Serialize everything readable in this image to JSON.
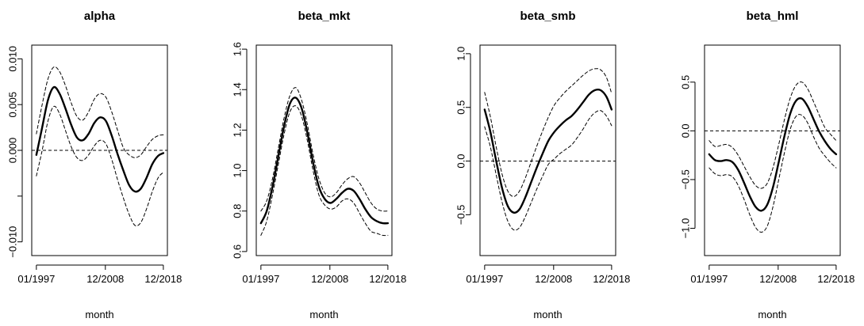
{
  "chart_data": [
    {
      "type": "line",
      "title": "alpha",
      "xlabel": "month",
      "ylabel": "",
      "x_tick_labels": [
        "01/1997",
        "12/2008",
        "12/2018"
      ],
      "x_tick_positions": [
        1997.0,
        2008.9,
        2018.9
      ],
      "xlim": [
        1996.2,
        2019.6
      ],
      "ylim": [
        -0.0115,
        0.0115
      ],
      "y_ticks": [
        -0.01,
        -0.005,
        0.0,
        0.005,
        0.01
      ],
      "y_tick_labels": [
        "−0.010",
        "",
        "0.000",
        "0.005",
        "0.010"
      ],
      "reference_line": 0,
      "grid": false,
      "x": [
        1997,
        1998,
        1999,
        2000,
        2001,
        2002,
        2003,
        2004,
        2005,
        2006,
        2007,
        2008,
        2009,
        2010,
        2011,
        2012,
        2013,
        2014,
        2015,
        2016,
        2017,
        2018,
        2018.9
      ],
      "series": [
        {
          "role": "estimate",
          "style": "solid",
          "values": [
            -0.0005,
            0.0025,
            0.0055,
            0.0069,
            0.0062,
            0.0046,
            0.0028,
            0.0014,
            0.0011,
            0.0018,
            0.003,
            0.0036,
            0.0032,
            0.0016,
            -0.0004,
            -0.0022,
            -0.0038,
            -0.0045,
            -0.0042,
            -0.003,
            -0.0015,
            -0.0006,
            -0.0003
          ]
        },
        {
          "role": "upper",
          "style": "dashed",
          "values": [
            0.0018,
            0.005,
            0.0078,
            0.0091,
            0.0086,
            0.0071,
            0.0052,
            0.0037,
            0.0033,
            0.0042,
            0.0056,
            0.0062,
            0.0058,
            0.0042,
            0.0022,
            0.0003,
            -0.0005,
            -0.0008,
            -0.0005,
            0.0004,
            0.0012,
            0.0016,
            0.0017
          ]
        },
        {
          "role": "lower",
          "style": "dashed",
          "values": [
            -0.0028,
            0.0,
            0.0032,
            0.0048,
            0.004,
            0.0022,
            0.0004,
            -0.0008,
            -0.0011,
            -0.0005,
            0.0005,
            0.0011,
            0.0007,
            -0.001,
            -0.0032,
            -0.0052,
            -0.007,
            -0.0082,
            -0.0079,
            -0.0064,
            -0.0045,
            -0.003,
            -0.0024
          ]
        }
      ]
    },
    {
      "type": "line",
      "title": "beta_mkt",
      "xlabel": "month",
      "ylabel": "",
      "x_tick_labels": [
        "01/1997",
        "12/2008",
        "12/2018"
      ],
      "x_tick_positions": [
        1997.0,
        2008.9,
        2018.9
      ],
      "xlim": [
        1996.2,
        2019.6
      ],
      "ylim": [
        0.58,
        1.62
      ],
      "y_ticks": [
        0.6,
        0.8,
        1.0,
        1.2,
        1.4,
        1.6
      ],
      "y_tick_labels": [
        "0.6",
        "0.8",
        "1.0",
        "1.2",
        "1.4",
        "1.6"
      ],
      "reference_line": null,
      "grid": false,
      "x": [
        1997,
        1998,
        1999,
        2000,
        2001,
        2002,
        2003,
        2004,
        2005,
        2006,
        2007,
        2008,
        2009,
        2010,
        2011,
        2012,
        2013,
        2014,
        2015,
        2016,
        2017,
        2018,
        2018.9
      ],
      "series": [
        {
          "role": "estimate",
          "style": "solid",
          "values": [
            0.74,
            0.8,
            0.92,
            1.07,
            1.22,
            1.33,
            1.36,
            1.31,
            1.19,
            1.04,
            0.92,
            0.86,
            0.84,
            0.86,
            0.89,
            0.91,
            0.9,
            0.86,
            0.81,
            0.77,
            0.75,
            0.74,
            0.74
          ]
        },
        {
          "role": "upper",
          "style": "dashed",
          "values": [
            0.8,
            0.85,
            0.96,
            1.11,
            1.26,
            1.37,
            1.41,
            1.35,
            1.23,
            1.08,
            0.96,
            0.89,
            0.87,
            0.89,
            0.93,
            0.96,
            0.97,
            0.94,
            0.89,
            0.84,
            0.81,
            0.8,
            0.8
          ]
        },
        {
          "role": "lower",
          "style": "dashed",
          "values": [
            0.68,
            0.75,
            0.88,
            1.03,
            1.18,
            1.29,
            1.32,
            1.27,
            1.15,
            1.0,
            0.88,
            0.83,
            0.81,
            0.82,
            0.85,
            0.86,
            0.84,
            0.79,
            0.74,
            0.7,
            0.69,
            0.68,
            0.68
          ]
        }
      ]
    },
    {
      "type": "line",
      "title": "beta_smb",
      "xlabel": "month",
      "ylabel": "",
      "x_tick_labels": [
        "01/1997",
        "12/2008",
        "12/2018"
      ],
      "x_tick_positions": [
        1997.0,
        2008.9,
        2018.9
      ],
      "xlim": [
        1996.2,
        2019.6
      ],
      "ylim": [
        -0.88,
        1.08
      ],
      "y_ticks": [
        -0.5,
        0.0,
        0.5,
        1.0
      ],
      "y_tick_labels": [
        "−0.5",
        "0.0",
        "0.5",
        "1.0"
      ],
      "reference_line": 0,
      "grid": false,
      "x": [
        1997,
        1998,
        1999,
        2000,
        2001,
        2002,
        2003,
        2004,
        2005,
        2006,
        2007,
        2008,
        2009,
        2010,
        2011,
        2012,
        2013,
        2014,
        2015,
        2016,
        2017,
        2018,
        2018.9
      ],
      "series": [
        {
          "role": "estimate",
          "style": "solid",
          "values": [
            0.48,
            0.27,
            0.0,
            -0.25,
            -0.42,
            -0.48,
            -0.45,
            -0.34,
            -0.2,
            -0.06,
            0.07,
            0.19,
            0.27,
            0.33,
            0.38,
            0.42,
            0.48,
            0.55,
            0.62,
            0.66,
            0.66,
            0.6,
            0.48
          ]
        },
        {
          "role": "upper",
          "style": "dashed",
          "values": [
            0.64,
            0.41,
            0.13,
            -0.12,
            -0.28,
            -0.33,
            -0.28,
            -0.16,
            -0.01,
            0.14,
            0.28,
            0.41,
            0.52,
            0.59,
            0.65,
            0.7,
            0.75,
            0.8,
            0.84,
            0.86,
            0.85,
            0.78,
            0.63
          ]
        },
        {
          "role": "lower",
          "style": "dashed",
          "values": [
            0.32,
            0.13,
            -0.13,
            -0.38,
            -0.56,
            -0.64,
            -0.62,
            -0.52,
            -0.39,
            -0.26,
            -0.14,
            -0.03,
            0.02,
            0.07,
            0.11,
            0.15,
            0.22,
            0.3,
            0.39,
            0.45,
            0.47,
            0.42,
            0.33
          ]
        }
      ]
    },
    {
      "type": "line",
      "title": "beta_hml",
      "xlabel": "month",
      "ylabel": "",
      "x_tick_labels": [
        "01/1997",
        "12/2008",
        "12/2018"
      ],
      "x_tick_positions": [
        1997.0,
        2008.9,
        2018.9
      ],
      "xlim": [
        1996.2,
        2019.6
      ],
      "ylim": [
        -1.28,
        0.88
      ],
      "y_ticks": [
        -1.0,
        -0.5,
        0.0,
        0.5
      ],
      "y_tick_labels": [
        "−1.0",
        "−0.5",
        "0.0",
        "0.5"
      ],
      "reference_line": 0,
      "grid": false,
      "x": [
        1997,
        1998,
        1999,
        2000,
        2001,
        2002,
        2003,
        2004,
        2005,
        2006,
        2007,
        2008,
        2009,
        2010,
        2011,
        2012,
        2013,
        2014,
        2015,
        2016,
        2017,
        2018,
        2018.9
      ],
      "series": [
        {
          "role": "estimate",
          "style": "solid",
          "values": [
            -0.24,
            -0.3,
            -0.31,
            -0.3,
            -0.32,
            -0.4,
            -0.53,
            -0.67,
            -0.78,
            -0.82,
            -0.76,
            -0.58,
            -0.32,
            -0.05,
            0.18,
            0.31,
            0.33,
            0.25,
            0.12,
            -0.01,
            -0.11,
            -0.19,
            -0.24
          ]
        },
        {
          "role": "upper",
          "style": "dashed",
          "values": [
            -0.1,
            -0.16,
            -0.15,
            -0.14,
            -0.17,
            -0.25,
            -0.36,
            -0.47,
            -0.56,
            -0.59,
            -0.54,
            -0.38,
            -0.14,
            0.12,
            0.34,
            0.47,
            0.5,
            0.43,
            0.3,
            0.16,
            0.03,
            -0.04,
            -0.1
          ]
        },
        {
          "role": "lower",
          "style": "dashed",
          "values": [
            -0.38,
            -0.44,
            -0.46,
            -0.45,
            -0.47,
            -0.56,
            -0.7,
            -0.86,
            -0.99,
            -1.04,
            -0.98,
            -0.78,
            -0.5,
            -0.22,
            0.02,
            0.15,
            0.16,
            0.08,
            -0.06,
            -0.18,
            -0.26,
            -0.33,
            -0.38
          ]
        }
      ]
    }
  ]
}
